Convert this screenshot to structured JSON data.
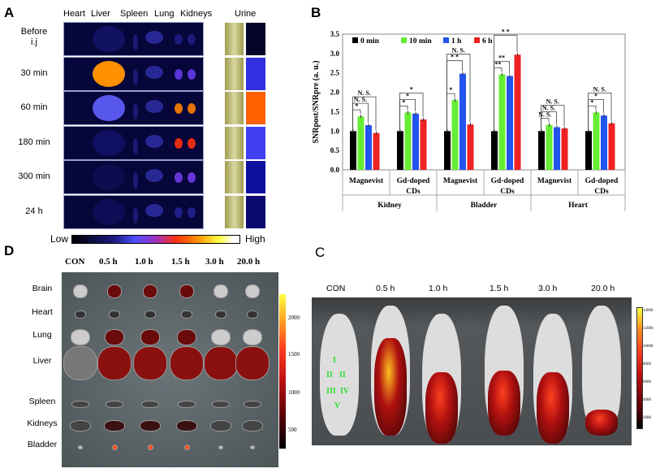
{
  "panels": {
    "A": {
      "label": "A",
      "columns": [
        "Heart",
        "Liver",
        "Spleen",
        "Lung",
        "Kidneys"
      ],
      "urine_label": "Urine",
      "rows": [
        [
          "Before",
          "i.j"
        ],
        [
          "30 min"
        ],
        [
          "60 min"
        ],
        [
          "180 min"
        ],
        [
          "300 min"
        ],
        [
          "24 h"
        ]
      ],
      "colorbar": {
        "low": "Low",
        "high": "High"
      }
    },
    "B": {
      "label": "B"
    },
    "C": {
      "label": "C",
      "columns": [
        "CON",
        "0.5 h",
        "1.0 h",
        "1.5 h",
        "3.0 h",
        "20.0 h"
      ],
      "region_labels": [
        "I",
        "II",
        "II",
        "III",
        "IV",
        "V"
      ],
      "colorbar_ticks": [
        "14000",
        "12000",
        "10000",
        "8000",
        "6000",
        "4000",
        "2000"
      ]
    },
    "D": {
      "label": "D",
      "columns": [
        "CON",
        "0.5 h",
        "1.0 h",
        "1.5 h",
        "3.0 h",
        "20.0 h"
      ],
      "rows": [
        "Brain",
        "Heart",
        "Lung",
        "Liver",
        "Spleen",
        "Kidneys",
        "Bladder"
      ],
      "colorbar_ticks": [
        "2000",
        "1500",
        "1000",
        "500"
      ]
    }
  },
  "chart_data": {
    "type": "bar",
    "ylabel": "SNRpost/SNRpre (a. u.)",
    "ylim": [
      0,
      3.5
    ],
    "yticks": [
      "0.0",
      "0.5",
      "1.0",
      "1.5",
      "2.0",
      "2.5",
      "3.0",
      "3.5"
    ],
    "legend_placement": "top-left",
    "groups": [
      "Kidney",
      "Bladder",
      "Heart"
    ],
    "categories": [
      {
        "group": "Kidney",
        "label": [
          "Magnevist"
        ]
      },
      {
        "group": "Kidney",
        "label": [
          "Gd-doped",
          "CDs"
        ]
      },
      {
        "group": "Bladder",
        "label": [
          "Magnevist"
        ]
      },
      {
        "group": "Bladder",
        "label": [
          "Gd-doped",
          "CDs"
        ]
      },
      {
        "group": "Heart",
        "label": [
          "Magnevist"
        ]
      },
      {
        "group": "Heart",
        "label": [
          "Gd-doped",
          "CDs"
        ]
      }
    ],
    "series": [
      {
        "name": "0 min",
        "color": "#000000",
        "values": [
          1.0,
          1.0,
          1.0,
          1.0,
          1.0,
          1.0
        ]
      },
      {
        "name": "10 min",
        "color": "#66ee33",
        "values": [
          1.38,
          1.48,
          1.8,
          2.46,
          1.16,
          1.48
        ]
      },
      {
        "name": "1 h",
        "color": "#2255ee",
        "values": [
          1.15,
          1.45,
          2.48,
          2.42,
          1.1,
          1.4
        ]
      },
      {
        "name": "6 h",
        "color": "#ee2222",
        "values": [
          0.95,
          1.3,
          1.17,
          2.97,
          1.07,
          1.2
        ]
      }
    ],
    "significance": [
      {
        "category": 0,
        "labels": [
          "*",
          "N. S.",
          "N. S."
        ]
      },
      {
        "category": 1,
        "labels": [
          "*",
          "*",
          "*"
        ]
      },
      {
        "category": 2,
        "labels": [
          "*",
          "* *",
          "N. S."
        ]
      },
      {
        "category": 3,
        "labels": [
          "**",
          "**",
          "* *"
        ]
      },
      {
        "category": 4,
        "labels": [
          "N. S.",
          "N. S.",
          "N. S."
        ]
      },
      {
        "category": 5,
        "labels": [
          "*",
          "*",
          "N. S."
        ]
      }
    ]
  }
}
